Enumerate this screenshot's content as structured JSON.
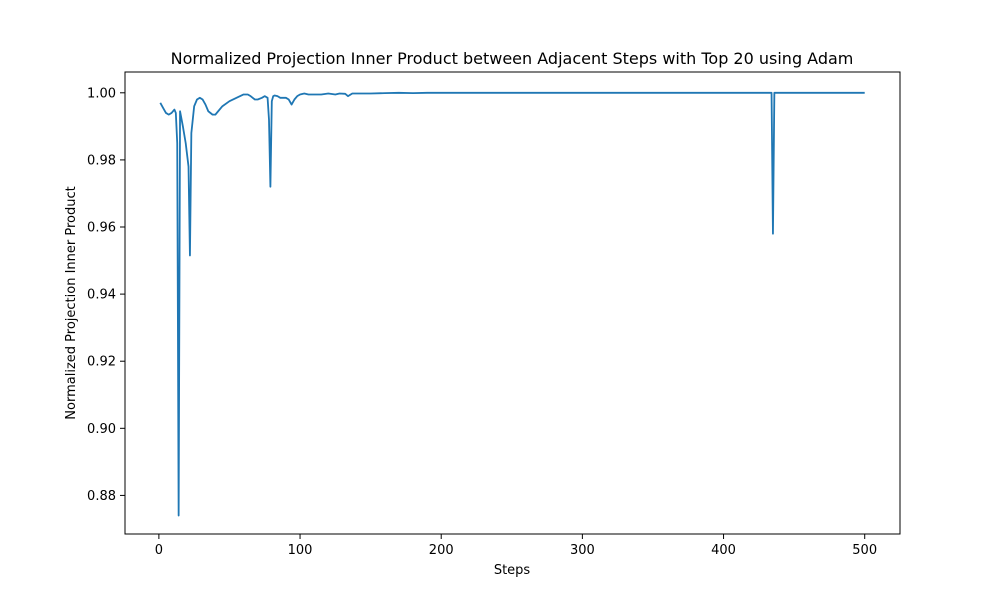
{
  "chart_data": {
    "type": "line",
    "title": "Normalized Projection Inner Product between Adjacent Steps with Top 20 using Adam",
    "xlabel": "Steps",
    "ylabel": "Normalized Projection Inner Product",
    "xlim": [
      -24,
      525
    ],
    "ylim": [
      0.8685,
      1.0062
    ],
    "xticks": [
      0,
      100,
      200,
      300,
      400,
      500
    ],
    "yticks": [
      0.88,
      0.9,
      0.92,
      0.94,
      0.96,
      0.98,
      1.0
    ],
    "ytick_labels": [
      "0.88",
      "0.90",
      "0.92",
      "0.94",
      "0.96",
      "0.98",
      "1.00"
    ],
    "grid": false,
    "legend": "none",
    "series_color": "#1f77b4",
    "series": [
      {
        "x": [
          1,
          3,
          5,
          7,
          9,
          11,
          12,
          13,
          14,
          15,
          17,
          19,
          21,
          22,
          23,
          25,
          27,
          29,
          31,
          33,
          35,
          38,
          40,
          42,
          45,
          50,
          55,
          60,
          63,
          65,
          68,
          70,
          73,
          75,
          77,
          78,
          79,
          80,
          81,
          82,
          84,
          86,
          88,
          90,
          92,
          94,
          96,
          98,
          100,
          103,
          106,
          110,
          115,
          120,
          125,
          128,
          132,
          134,
          137,
          140,
          150,
          160,
          170,
          180,
          190,
          200,
          250,
          300,
          350,
          400,
          430,
          434,
          435,
          436,
          437,
          440,
          450,
          480,
          500
        ],
        "y": [
          0.997,
          0.9955,
          0.994,
          0.9935,
          0.994,
          0.995,
          0.994,
          0.985,
          0.874,
          0.9945,
          0.99,
          0.985,
          0.978,
          0.9515,
          0.988,
          0.996,
          0.998,
          0.9985,
          0.998,
          0.9965,
          0.9945,
          0.9935,
          0.9935,
          0.9945,
          0.996,
          0.9975,
          0.9985,
          0.9995,
          0.9995,
          0.999,
          0.998,
          0.998,
          0.9985,
          0.999,
          0.9985,
          0.992,
          0.972,
          0.9975,
          0.999,
          0.9992,
          0.999,
          0.9985,
          0.9985,
          0.9985,
          0.998,
          0.9965,
          0.998,
          0.999,
          0.9995,
          0.9998,
          0.9995,
          0.9995,
          0.9995,
          0.9998,
          0.9995,
          0.9998,
          0.9997,
          0.999,
          0.9998,
          0.9998,
          0.9998,
          0.9999,
          1.0,
          0.9999,
          1.0,
          1.0,
          1.0,
          1.0,
          1.0,
          1.0,
          1.0,
          1.0,
          0.958,
          1.0,
          1.0,
          1.0,
          1.0,
          1.0,
          1.0
        ]
      }
    ]
  }
}
